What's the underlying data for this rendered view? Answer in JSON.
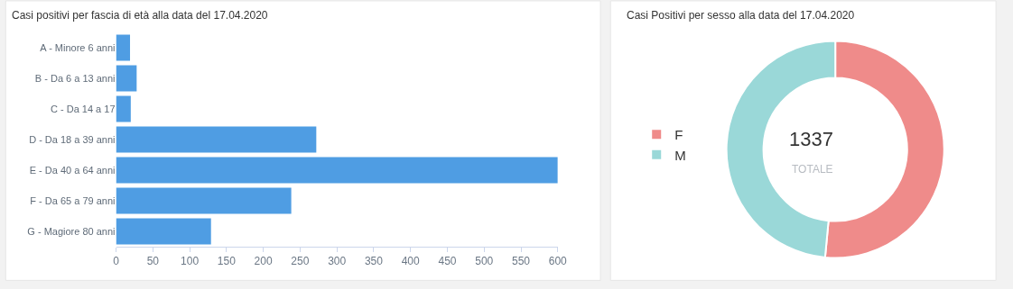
{
  "chart_data": [
    {
      "type": "bar",
      "title": "Casi positivi per fascia di età alla data del 17.04.2020",
      "orientation": "horizontal",
      "categories": [
        "A - Minore 6 anni",
        "B - Da 6 a 13 anni",
        "C - Da 14 a 17",
        "D - Da 18 a 39 anni",
        "E - Da 40 a 64 anni",
        "F - Da 65 a 79 anni",
        "G - Magiore 80 anni"
      ],
      "values": [
        19,
        28,
        20,
        272,
        600,
        238,
        129
      ],
      "color": "#4f9de3",
      "xlim": [
        0,
        600
      ],
      "xticks": [
        0,
        50,
        100,
        150,
        200,
        250,
        300,
        350,
        400,
        450,
        500,
        550,
        600
      ],
      "grid": false
    },
    {
      "type": "donut",
      "title": "Casi Positivi per sesso alla data del 17.04.2020",
      "categories": [
        "F",
        "M"
      ],
      "values": [
        51.5,
        48.5
      ],
      "colors": [
        "#ef8b8a",
        "#9ad8d8"
      ],
      "legend": "left",
      "annotations": [
        "1337",
        "TOTALE"
      ]
    }
  ]
}
